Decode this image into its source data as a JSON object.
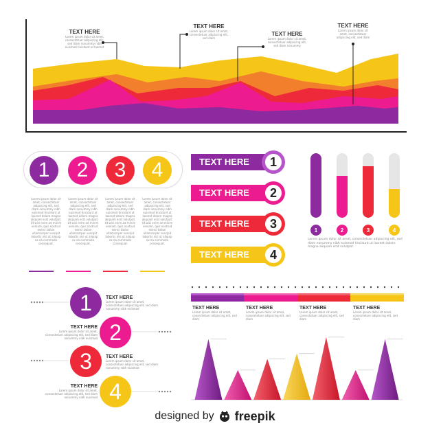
{
  "colors": {
    "purple": "#8e2a9f",
    "purple_light": "#b555c9",
    "magenta": "#ec1b8f",
    "red": "#ee2a3a",
    "orange": "#f27f2c",
    "yellow": "#f5c518",
    "dark": "#222222"
  },
  "area_chart": {
    "callouts": [
      {
        "title": "TEXT HERE",
        "body": "Lorem ipsum dolor sit amet, consectetuer adipiscing elit, sed diam nonummy nibh euismod tincidunt ut laoreet"
      },
      {
        "title": "TEXT HERE",
        "body": "Lorem ipsum dolor sit amet, consectetuer adipiscing elit, sed diam"
      },
      {
        "title": "TEXT HERE",
        "body": "Lorem ipsum dolor sit amet, consectetuer adipiscing elit, sed diam nonummy"
      },
      {
        "title": "TEXT HERE",
        "body": "Lorem ipsum dolor sit amet, consectetuer adipiscing elit, sed diam"
      }
    ]
  },
  "number_circles": {
    "items": [
      {
        "number": "1",
        "color": "#8e2a9f"
      },
      {
        "number": "2",
        "color": "#ec1b8f"
      },
      {
        "number": "3",
        "color": "#ee2a3a"
      },
      {
        "number": "4",
        "color": "#f5c518"
      }
    ],
    "captions": [
      "Lorem ipsum dolor sit amet, consectetuer adipiscing elit, sed diam nonummy nibh euismod tincidunt ut laoreet dolore magna aliquam erat volutpat. Ut wisi enim ad minim veniam, quis nostrud exerci tation ullamcorper suscipit lobortis nisl ut aliquip ex ea commodo consequat.",
      "Lorem ipsum dolor sit amet, consectetuer adipiscing elit, sed diam nonummy nibh euismod tincidunt ut laoreet dolore magna aliquam erat volutpat. Ut wisi enim ad minim veniam, quis nostrud exerci tation ullamcorper suscipit lobortis nisl ut aliquip ex ea commodo consequat.",
      "Lorem ipsum dolor sit amet, consectetuer adipiscing elit, sed diam nonummy nibh euismod tincidunt ut laoreet dolore magna aliquam erat volutpat. Ut wisi enim ad minim veniam, quis nostrud exerci tation ullamcorper suscipit lobortis nisl ut aliquip ex ea commodo consequat.",
      "Lorem ipsum dolor sit amet, consectetuer adipiscing elit, sed diam nonummy nibh euismod tincidunt ut laoreet dolore magna aliquam erat volutpat. Ut wisi enim ad minim veniam, quis nostrud exerci tation ullamcorper suscipit lobortis nisl ut aliquip ex ea commodo consequat."
    ]
  },
  "banners": [
    {
      "label": "TEXT HERE",
      "number": "1",
      "color": "#8e2a9f"
    },
    {
      "label": "TEXT HERE",
      "number": "2",
      "color": "#ec1b8f"
    },
    {
      "label": "TEXT HERE",
      "number": "3",
      "color": "#ee2a3a"
    },
    {
      "label": "TEXT HERE",
      "number": "4",
      "color": "#f5c518"
    }
  ],
  "vertical_bars": {
    "items": [
      {
        "number": "1",
        "level": 1.0,
        "color": "#8e2a9f"
      },
      {
        "number": "2",
        "level": 0.65,
        "color": "#ec1b8f"
      },
      {
        "number": "3",
        "level": 0.8,
        "color": "#ee2a3a"
      },
      {
        "number": "4",
        "level": 0.45,
        "color": "#f5c518"
      }
    ],
    "caption_left": "Lorem ipsum dolor sit amet, consectetuer adipiscing elit, sed diam nonummy nibh euismod tincidunt ut laoreet dolore magna aliquam erat volutpat.",
    "caption_right": "Lorem ipsum dolor sit amet, consectetuer adipiscing elit, sed diam nonummy nibh euismod tincidunt ut laoreet dolore magna aliquam erat volutpat."
  },
  "zigzag": {
    "items": [
      {
        "number": "1",
        "title": "TEXT HERE",
        "body": "Lorem ipsum dolor sit amet, consectetuer adipiscing elit, sed diam nonummy nibh euismod",
        "color": "#8e2a9f"
      },
      {
        "number": "2",
        "title": "TEXT HERE",
        "body": "Lorem ipsum dolor sit amet, consectetuer adipiscing elit, sed diam nonummy nibh euismod",
        "color": "#ec1b8f"
      },
      {
        "number": "3",
        "title": "TEXT HERE",
        "body": "Lorem ipsum dolor sit amet, consectetuer adipiscing elit, sed diam nonummy nibh euismod",
        "color": "#ee2a3a"
      },
      {
        "number": "4",
        "title": "TEXT HERE",
        "body": "Lorem ipsum dolor sit amet, consectetuer adipiscing elit, sed diam nonummy nibh euismod",
        "color": "#f5c518"
      }
    ]
  },
  "peaks": {
    "headers": [
      {
        "title": "TEXT HERE",
        "body": "Lorem ipsum dolor sit amet, consectetuer adipiscing elit, sed diam"
      },
      {
        "title": "TEXT HERE",
        "body": "Lorem ipsum dolor sit amet, consectetuer adipiscing elit, sed diam"
      },
      {
        "title": "TEXT HERE",
        "body": "Lorem ipsum dolor sit amet, consectetuer adipiscing elit, sed diam"
      },
      {
        "title": "TEXT HERE",
        "body": "Lorem ipsum dolor sit amet, consectetuer adipiscing elit, sed diam"
      }
    ],
    "peak_values": [
      0.92,
      0.45,
      0.62,
      0.7,
      0.95,
      0.45,
      0.92
    ],
    "peak_colors": [
      "#8e2a9f",
      "#ec1b8f",
      "#ee2a3a",
      "#f5c518",
      "#ee2a3a",
      "#ec1b8f",
      "#8e2a9f"
    ]
  },
  "footer": {
    "designed_by": "designed by",
    "brand": "freepik"
  }
}
